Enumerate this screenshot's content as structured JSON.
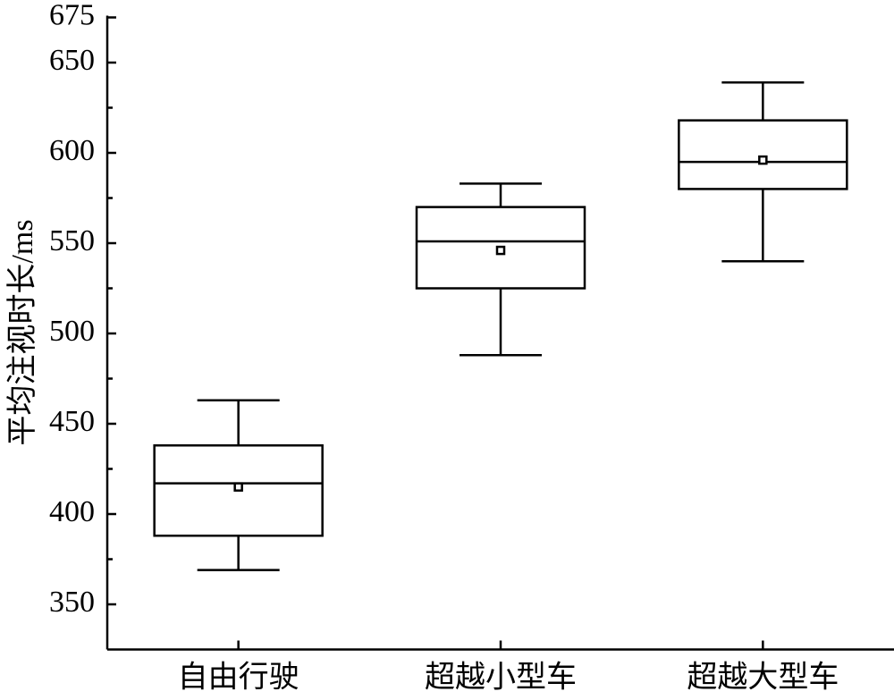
{
  "chart_data": {
    "type": "box",
    "y_label": "平均注视时长/ms",
    "categories": [
      "自由行驶",
      "超越小型车",
      "超越大型车"
    ],
    "boxes": [
      {
        "min": 369,
        "q1": 388,
        "median": 417,
        "q3": 438,
        "max": 463,
        "mean": 415
      },
      {
        "min": 488,
        "q1": 525,
        "median": 551,
        "q3": 570,
        "max": 583,
        "mean": 546
      },
      {
        "min": 540,
        "q1": 580,
        "median": 595,
        "q3": 618,
        "max": 639,
        "mean": 596
      }
    ],
    "color": "#000000",
    "ylim": [
      325,
      675
    ],
    "yticks": [
      350,
      400,
      450,
      500,
      550,
      600,
      650,
      675
    ]
  }
}
